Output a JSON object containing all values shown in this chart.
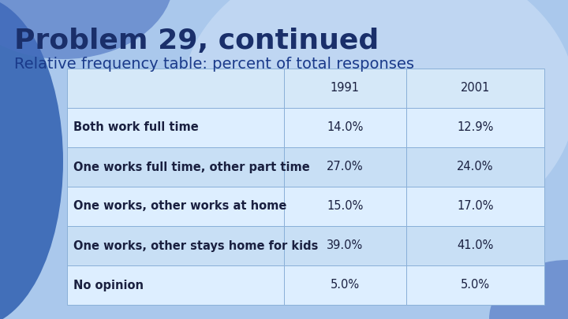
{
  "title": "Problem 29, continued",
  "subtitle": "Relative frequency table: percent of total responses",
  "col_headers": [
    "",
    "1991",
    "2001"
  ],
  "rows": [
    [
      "Both work full time",
      "14.0%",
      "12.9%"
    ],
    [
      "One works full time, other part time",
      "27.0%",
      "24.0%"
    ],
    [
      "One works, other works at home",
      "15.0%",
      "17.0%"
    ],
    [
      "One works, other stays home for kids",
      "39.0%",
      "41.0%"
    ],
    [
      "No opinion",
      "5.0%",
      "5.0%"
    ]
  ],
  "bg_light": "#b8d0f0",
  "bg_mid": "#8ab0e0",
  "bg_dark": "#5580c0",
  "title_color": "#1a2f6a",
  "subtitle_color": "#1a3a8a",
  "table_row_light": "#ddeeff",
  "table_row_alt": "#c8dff5",
  "table_header_bg": "#d5e8f8",
  "table_border_color": "#8ab0d8",
  "table_text_color": "#1a2040",
  "title_fontsize": 26,
  "subtitle_fontsize": 14,
  "table_fontsize": 10.5
}
